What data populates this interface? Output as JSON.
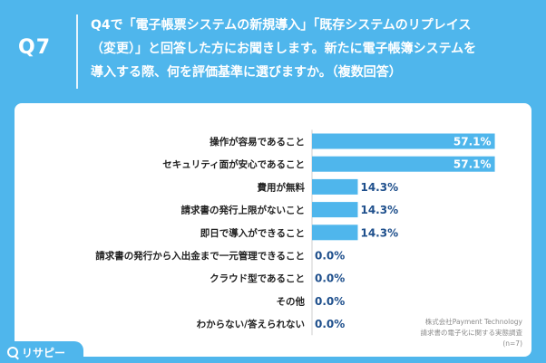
{
  "header": {
    "question_number": "Q7",
    "question_lines": [
      "Q4で「電子帳票システムの新規導入」「既存システムのリプレイス",
      "（変更）」と回答した方にお聞きします。新たに電子帳簿システムを",
      "導入する際、何を評価基準に選びますか。（複数回答）"
    ]
  },
  "chart_data": {
    "type": "bar",
    "orientation": "horizontal",
    "categories": [
      "操作が容易であること",
      "セキュリティ面が安心であること",
      "費用が無料",
      "請求書の発行上限がないこと",
      "即日で導入ができること",
      "請求書の発行から入出金まで一元管理できること",
      "クラウド型であること",
      "その他",
      "わからない/答えられない"
    ],
    "values": [
      57.1,
      57.1,
      14.3,
      14.3,
      14.3,
      0.0,
      0.0,
      0.0,
      0.0
    ],
    "value_labels": [
      "57.1%",
      "57.1%",
      "14.3%",
      "14.3%",
      "14.3%",
      "0.0%",
      "0.0%",
      "0.0%",
      "0.0%"
    ],
    "xlim": [
      0,
      100
    ],
    "bar_color": "#4fb6ec",
    "label_color": "#1e4f8c"
  },
  "source": {
    "lines": [
      "株式会社Payment Technology",
      "請求書の電子化に関する実態調査",
      "(n=7)"
    ]
  },
  "logo": {
    "text": "リサピー"
  }
}
